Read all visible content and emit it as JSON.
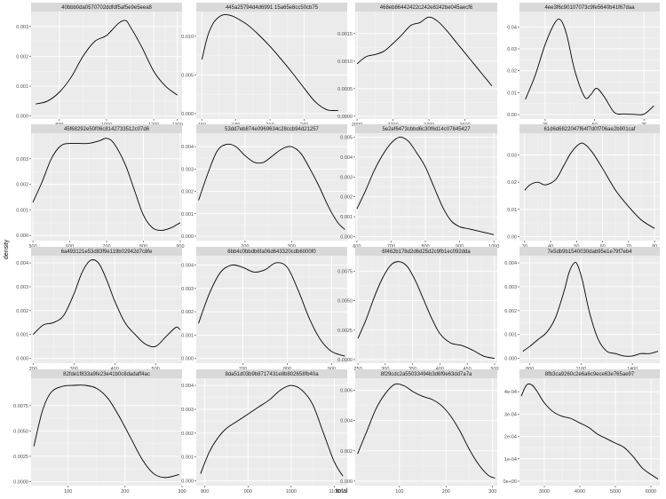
{
  "figure": {
    "xlabel": "total",
    "ylabel": "density",
    "colors": {
      "panel_bg": "#ebebeb",
      "strip_bg": "#d9d9d9",
      "grid_major": "#ffffff",
      "grid_minor": "#f5f5f5",
      "line": "#000000"
    }
  },
  "chart_data": [
    {
      "type": "line",
      "title": "40bbb0da0570702ddfdf5af5e9e5eea8",
      "xlim": [
        680,
        1320
      ],
      "ylim": [
        -0.0001,
        0.0035
      ],
      "xticks": [
        800,
        1000,
        1200,
        1300
      ],
      "xtick_labels": [
        "800",
        "1000",
        "1200",
        "1300"
      ],
      "yticks": [
        0,
        0.001,
        0.002,
        0.003
      ],
      "ytick_labels": [
        "0.000",
        "0.001",
        "0.002",
        "0.003"
      ],
      "x": [
        700,
        750,
        800,
        850,
        900,
        950,
        1000,
        1050,
        1080,
        1100,
        1150,
        1200,
        1250,
        1300
      ],
      "y": [
        0.0004,
        0.0005,
        0.0008,
        0.0013,
        0.002,
        0.0025,
        0.0027,
        0.0031,
        0.0032,
        0.003,
        0.0023,
        0.0015,
        0.001,
        0.0007
      ]
    },
    {
      "type": "line",
      "title": "445a25794d4d6991 15a65e8cc50cb75",
      "xlim": [
        145,
        278
      ],
      "ylim": [
        -0.0007,
        0.0132
      ],
      "xticks": [
        150,
        180,
        210,
        240
      ],
      "xtick_labels": [
        "150",
        "180",
        "210",
        "240"
      ],
      "yticks": [
        0,
        0.005,
        0.01
      ],
      "ytick_labels": [
        "0.000",
        "0.005",
        "0.010"
      ],
      "x": [
        150,
        155,
        160,
        165,
        170,
        175,
        180,
        190,
        200,
        210,
        220,
        230,
        240,
        250,
        260,
        270
      ],
      "y": [
        0.007,
        0.01,
        0.0117,
        0.0125,
        0.0128,
        0.0127,
        0.0124,
        0.0115,
        0.0102,
        0.0087,
        0.007,
        0.0052,
        0.0033,
        0.0015,
        0.0005,
        0.0004
      ]
    },
    {
      "type": "line",
      "title": "468eb86442422c242e8242be045aecf6",
      "xlim": [
        1990,
        2780
      ],
      "ylim": [
        -5e-05,
        0.0019
      ],
      "xticks": [
        2000,
        2200,
        2400,
        2600
      ],
      "xtick_labels": [
        "2000",
        "2200",
        "2400",
        "2600"
      ],
      "yticks": [
        0,
        0.0005,
        0.001,
        0.0015
      ],
      "ytick_labels": [
        "0.0000",
        "0.0005",
        "0.0010",
        "0.0015"
      ],
      "x": [
        2000,
        2050,
        2100,
        2150,
        2200,
        2250,
        2300,
        2350,
        2400,
        2450,
        2500,
        2550,
        2600,
        2650,
        2700,
        2750
      ],
      "y": [
        0.00095,
        0.00108,
        0.00112,
        0.00118,
        0.00132,
        0.00148,
        0.00165,
        0.0017,
        0.0018,
        0.00172,
        0.00155,
        0.00135,
        0.00115,
        0.00095,
        0.00075,
        0.00055
      ]
    },
    {
      "type": "line",
      "title": "4ee3f6c90107073c9fe5640b41f67daa",
      "xlim": [
        12,
        83
      ],
      "ylim": [
        -0.002,
        0.047
      ],
      "xticks": [
        25,
        50,
        75
      ],
      "xtick_labels": [
        "25",
        "50",
        "75"
      ],
      "yticks": [
        0,
        0.01,
        0.02,
        0.03,
        0.04
      ],
      "ytick_labels": [
        "0.00",
        "0.01",
        "0.02",
        "0.03",
        "0.04"
      ],
      "x": [
        15,
        20,
        25,
        30,
        33,
        36,
        40,
        45,
        48,
        51,
        55,
        60,
        65,
        70,
        75,
        80
      ],
      "y": [
        0.007,
        0.018,
        0.032,
        0.042,
        0.043,
        0.036,
        0.02,
        0.008,
        0.009,
        0.012,
        0.008,
        0.001,
        0.0003,
        0.0001,
        0.0002,
        0.004
      ]
    },
    {
      "type": "line",
      "title": "45f68292e50f06c8142733512c07d6",
      "xlim": [
        495,
        905
      ],
      "ylim": [
        -0.0002,
        0.004
      ],
      "xticks": [
        500,
        600,
        700,
        800,
        900
      ],
      "xtick_labels": [
        "500",
        "600",
        "700",
        "800",
        "900"
      ],
      "yticks": [
        0,
        0.001,
        0.002,
        0.003
      ],
      "ytick_labels": [
        "0.000",
        "0.001",
        "0.002",
        "0.003"
      ],
      "x": [
        500,
        525,
        550,
        575,
        600,
        650,
        680,
        700,
        720,
        750,
        775,
        800,
        825,
        850,
        875,
        900
      ],
      "y": [
        0.0013,
        0.0021,
        0.003,
        0.0035,
        0.0036,
        0.0036,
        0.0037,
        0.0038,
        0.0036,
        0.0028,
        0.0018,
        0.0008,
        0.0003,
        0.0002,
        0.0003,
        0.0005
      ]
    },
    {
      "type": "line",
      "title": "53dd7eb874e0969634c28ccb94d21257",
      "xlim": [
        95,
        420
      ],
      "ylim": [
        -0.0002,
        0.0046
      ],
      "xticks": [
        200,
        300
      ],
      "xtick_labels": [
        "200",
        "300"
      ],
      "yticks": [
        0,
        0.001,
        0.002,
        0.003,
        0.004
      ],
      "ytick_labels": [
        "0.000",
        "0.001",
        "0.002",
        "0.003",
        "0.004"
      ],
      "x": [
        100,
        120,
        140,
        160,
        180,
        200,
        220,
        240,
        260,
        280,
        300,
        320,
        340,
        360,
        380,
        400,
        415
      ],
      "y": [
        0.0016,
        0.0028,
        0.0038,
        0.0041,
        0.004,
        0.0036,
        0.0033,
        0.0033,
        0.0036,
        0.0039,
        0.004,
        0.0037,
        0.003,
        0.0022,
        0.0013,
        0.0006,
        0.0003
      ]
    },
    {
      "type": "line",
      "title": "5e2ef6473cbbd6c30f6d14c07845427",
      "xlim": [
        595,
        1010
      ],
      "ylim": [
        -0.0002,
        0.0052
      ],
      "xticks": [
        600,
        700,
        800,
        900,
        1000
      ],
      "xtick_labels": [
        "600",
        "700",
        "800",
        "900",
        "1000"
      ],
      "yticks": [
        0,
        0.001,
        0.002,
        0.003,
        0.004,
        0.005
      ],
      "ytick_labels": [
        "0.000",
        "0.001",
        "0.002",
        "0.003",
        "0.004",
        "0.005"
      ],
      "x": [
        600,
        625,
        650,
        675,
        700,
        725,
        750,
        775,
        800,
        825,
        850,
        875,
        900,
        925,
        950,
        975,
        1000
      ],
      "y": [
        0.0014,
        0.0023,
        0.0033,
        0.0041,
        0.0047,
        0.005,
        0.0048,
        0.0042,
        0.0035,
        0.0025,
        0.0015,
        0.0008,
        0.0005,
        0.0004,
        0.0003,
        0.0002,
        0.0001
      ]
    },
    {
      "type": "line",
      "title": "61d6d6822047f64f7d0f706ae2b901caf",
      "xlim": [
        28,
        82
      ],
      "ylim": [
        -0.0015,
        0.038
      ],
      "xticks": [
        30,
        40,
        50,
        60,
        70,
        80
      ],
      "xtick_labels": [
        "30",
        "40",
        "50",
        "60",
        "70",
        "80"
      ],
      "yticks": [
        0,
        0.01,
        0.02,
        0.03
      ],
      "ytick_labels": [
        "0.00",
        "0.01",
        "0.02",
        "0.03"
      ],
      "x": [
        30,
        32,
        35,
        38,
        42,
        45,
        48,
        51,
        53,
        56,
        60,
        65,
        70,
        75,
        80
      ],
      "y": [
        0.017,
        0.019,
        0.02,
        0.019,
        0.021,
        0.026,
        0.031,
        0.034,
        0.034,
        0.031,
        0.025,
        0.017,
        0.011,
        0.006,
        0.003
      ]
    },
    {
      "type": "line",
      "title": "6a493121e53d83f9e119b02942d7c8fe",
      "xlim": [
        195,
        565
      ],
      "ylim": [
        -0.0002,
        0.0043
      ],
      "xticks": [
        200,
        300,
        400,
        500
      ],
      "xtick_labels": [
        "200",
        "300",
        "400",
        "500"
      ],
      "yticks": [
        0,
        0.001,
        0.002,
        0.003,
        0.004
      ],
      "ytick_labels": [
        "0.000",
        "0.001",
        "0.002",
        "0.003",
        "0.004"
      ],
      "x": [
        200,
        225,
        250,
        275,
        300,
        320,
        340,
        360,
        380,
        400,
        425,
        450,
        475,
        500,
        525,
        550,
        560
      ],
      "y": [
        0.001,
        0.0014,
        0.0015,
        0.0018,
        0.0027,
        0.0036,
        0.0041,
        0.004,
        0.0033,
        0.0024,
        0.0015,
        0.001,
        0.0006,
        0.0005,
        0.0009,
        0.0013,
        0.0012
      ]
    },
    {
      "type": "line",
      "title": "6bb4c0bbdb6fa06d643320cdb6000f0",
      "xlim": [
        595,
        935
      ],
      "ylim": [
        -0.0002,
        0.0044
      ],
      "xticks": [
        700,
        800,
        900
      ],
      "xtick_labels": [
        "700",
        "800",
        "900"
      ],
      "yticks": [
        0,
        0.001,
        0.002,
        0.003,
        0.004
      ],
      "ytick_labels": [
        "0.000",
        "0.001",
        "0.002",
        "0.003",
        "0.004"
      ],
      "x": [
        600,
        625,
        650,
        675,
        700,
        725,
        750,
        775,
        800,
        825,
        850,
        875,
        900,
        930
      ],
      "y": [
        0.0015,
        0.0028,
        0.0037,
        0.004,
        0.0039,
        0.0037,
        0.0038,
        0.0041,
        0.0039,
        0.0029,
        0.0017,
        0.0008,
        0.0003,
        0.0001
      ]
    },
    {
      "type": "line",
      "title": "6f462b178d2d6d25d2c9fb1ec092dda",
      "xlim": [
        245,
        505
      ],
      "ylim": [
        -0.0003,
        0.0088
      ],
      "xticks": [
        250,
        300,
        350,
        400,
        450,
        500
      ],
      "xtick_labels": [
        "250",
        "300",
        "350",
        "400",
        "450",
        "500"
      ],
      "yticks": [
        0,
        0.0025,
        0.005,
        0.0075
      ],
      "ytick_labels": [
        "0.0000",
        "0.0025",
        "0.0050",
        "0.0075"
      ],
      "x": [
        250,
        265,
        280,
        295,
        310,
        325,
        340,
        355,
        370,
        385,
        400,
        420,
        440,
        460,
        480,
        500
      ],
      "y": [
        0.0018,
        0.0034,
        0.0053,
        0.0069,
        0.008,
        0.0083,
        0.0079,
        0.0067,
        0.0051,
        0.0035,
        0.0022,
        0.0014,
        0.0012,
        0.0008,
        0.0003,
        0.0001
      ]
    },
    {
      "type": "line",
      "title": "7e5db9b1540030dab95e1e79f7eb4",
      "xlim": [
        740,
        1560
      ],
      "ylim": [
        -0.0002,
        0.0043
      ],
      "xticks": [
        800,
        1100,
        1400
      ],
      "xtick_labels": [
        "800",
        "1100",
        "1400"
      ],
      "yticks": [
        0,
        0.001,
        0.002,
        0.003,
        0.004
      ],
      "ytick_labels": [
        "0.000",
        "0.001",
        "0.002",
        "0.003",
        "0.004"
      ],
      "x": [
        760,
        800,
        850,
        900,
        950,
        1000,
        1030,
        1060,
        1080,
        1110,
        1150,
        1200,
        1250,
        1300,
        1350,
        1400,
        1450,
        1500,
        1550
      ],
      "y": [
        0.0003,
        0.0005,
        0.0008,
        0.0011,
        0.0017,
        0.0028,
        0.0036,
        0.004,
        0.0039,
        0.0032,
        0.0019,
        0.0008,
        0.0003,
        0.0002,
        0.0001,
        0.0001,
        0.0002,
        0.0002,
        0.0003
      ]
    },
    {
      "type": "line",
      "title": "82fde1f833a9fe23e41b0c8dadaff4ac",
      "xlim": [
        35,
        300
      ],
      "ylim": [
        -0.0004,
        0.0102
      ],
      "xticks": [
        100,
        200,
        300
      ],
      "xtick_labels": [
        "100",
        "200",
        "300"
      ],
      "yticks": [
        0,
        0.0025,
        0.005,
        0.0075
      ],
      "ytick_labels": [
        "0.0000",
        "0.0025",
        "0.0050",
        "0.0075"
      ],
      "x": [
        40,
        55,
        70,
        90,
        110,
        130,
        150,
        170,
        190,
        210,
        230,
        250,
        270,
        295
      ],
      "y": [
        0.0035,
        0.007,
        0.0088,
        0.0094,
        0.0095,
        0.0095,
        0.0092,
        0.0082,
        0.0064,
        0.0043,
        0.0022,
        0.0008,
        0.0004,
        0.0007
      ]
    },
    {
      "type": "line",
      "title": "8da51d03b9b8717431e8b802658fb40a",
      "xlim": [
        780,
        1130
      ],
      "ylim": [
        -0.0002,
        0.0043
      ],
      "xticks": [
        800,
        900,
        1000,
        1100
      ],
      "xtick_labels": [
        "800",
        "900",
        "1000",
        "1100"
      ],
      "yticks": [
        0,
        0.001,
        0.002,
        0.003,
        0.004
      ],
      "ytick_labels": [
        "0.000",
        "0.001",
        "0.002",
        "0.003",
        "0.004"
      ],
      "x": [
        790,
        810,
        830,
        850,
        875,
        900,
        925,
        950,
        975,
        1000,
        1025,
        1050,
        1075,
        1100,
        1120
      ],
      "y": [
        0.0003,
        0.0012,
        0.0018,
        0.0022,
        0.0025,
        0.0028,
        0.0031,
        0.0034,
        0.0038,
        0.004,
        0.0038,
        0.0032,
        0.002,
        0.0008,
        0.0002
      ]
    },
    {
      "type": "line",
      "title": "8f29cdc2a55033494b3d6f9e63dd7a7a",
      "xlim": [
        5,
        310
      ],
      "ylim": [
        -0.0003,
        0.0068
      ],
      "xticks": [
        100,
        200,
        300
      ],
      "xtick_labels": [
        "100",
        "200",
        "300"
      ],
      "yticks": [
        0,
        0.002,
        0.004,
        0.006
      ],
      "ytick_labels": [
        "0.000",
        "0.002",
        "0.004",
        "0.006"
      ],
      "x": [
        10,
        30,
        50,
        70,
        90,
        110,
        130,
        150,
        170,
        190,
        210,
        230,
        250,
        270,
        290,
        305
      ],
      "y": [
        0.0018,
        0.0033,
        0.0048,
        0.0058,
        0.0064,
        0.0063,
        0.0059,
        0.0056,
        0.0054,
        0.005,
        0.0043,
        0.0033,
        0.0021,
        0.0011,
        0.0004,
        0.0002
      ]
    },
    {
      "type": "line",
      "title": "8fb3ca9260c2e6a6c9ece63e765ae97",
      "xlim": [
        2300,
        6250
      ],
      "ylim": [
        -2e-05,
        0.00046
      ],
      "xticks": [
        3000,
        4000,
        5000,
        6000
      ],
      "xtick_labels": [
        "3000",
        "4000",
        "5000",
        "6000"
      ],
      "yticks": [
        0,
        0.0001,
        0.0002,
        0.0003,
        0.0004
      ],
      "ytick_labels": [
        "0e+00",
        "1e-04",
        "2e-04",
        "3e-04",
        "4e-04"
      ],
      "x": [
        2350,
        2500,
        2650,
        2800,
        3000,
        3250,
        3500,
        3750,
        4000,
        4250,
        4500,
        4750,
        5000,
        5250,
        5500,
        5750,
        6000,
        6200
      ],
      "y": [
        0.00038,
        0.00043,
        0.00043,
        0.0004,
        0.00035,
        0.00031,
        0.00029,
        0.00028,
        0.00026,
        0.00024,
        0.00021,
        0.00019,
        0.00017,
        0.00015,
        0.00011,
        6e-05,
        3e-05,
        1e-05
      ]
    }
  ]
}
